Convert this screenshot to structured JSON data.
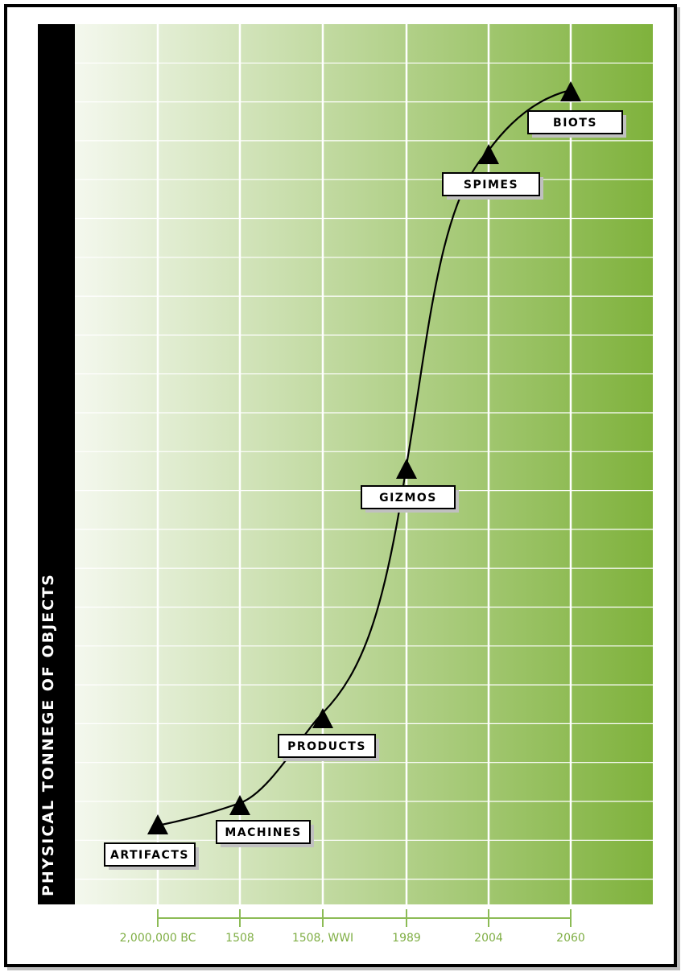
{
  "chart_data": {
    "type": "line",
    "ylabel": "PHYSICAL TONNEGE OF OBJECTS",
    "xlabel": "",
    "title": "",
    "x_ticks": [
      "2,000,000 BC",
      "1508",
      "1508, WWI",
      "1989",
      "2004",
      "2060"
    ],
    "points": [
      {
        "x": "2,000,000 BC",
        "label": "ARTIFACTS"
      },
      {
        "x": "1508",
        "label": "MACHINES"
      },
      {
        "x": "1508, WWI",
        "label": "PRODUCTS"
      },
      {
        "x": "1989",
        "label": "GIZMOS"
      },
      {
        "x": "2004",
        "label": "SPIMES"
      },
      {
        "x": "2060",
        "label": "BIOTS"
      }
    ],
    "grid": true,
    "colors": {
      "gradient_start": "#f4f8ee",
      "gradient_end": "#7fb23c",
      "axis": "#8cbb55",
      "tick_text": "#7fae44",
      "curve": "#000000"
    }
  }
}
